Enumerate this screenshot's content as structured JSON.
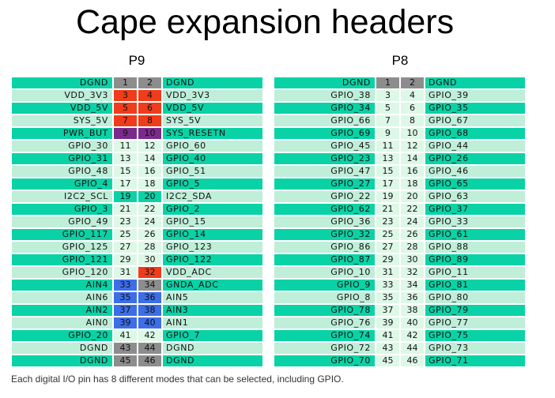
{
  "title": "Cape expansion headers",
  "footnote": "Each digital I/O pin has 8 different modes that can be selected, including GPIO.",
  "colors": {
    "teal": "#09d3a6",
    "light": "#bfeed9",
    "pale": "#ddf8e6",
    "red": "#f03c1a",
    "purple": "#7a2a8c",
    "blue": "#3c6ee8",
    "gray": "#8d8d8d"
  },
  "headers": [
    {
      "name": "P9",
      "rows": [
        {
          "left": "DGND",
          "pin_a": "1",
          "pin_b": "2",
          "right": "DGND",
          "label_color": "teal",
          "pin_color": "gray"
        },
        {
          "left": "VDD_3V3",
          "pin_a": "3",
          "pin_b": "4",
          "right": "VDD_3V3",
          "label_color": "light",
          "pin_color": "red"
        },
        {
          "left": "VDD_5V",
          "pin_a": "5",
          "pin_b": "6",
          "right": "VDD_5V",
          "label_color": "teal",
          "pin_color": "red"
        },
        {
          "left": "SYS_5V",
          "pin_a": "7",
          "pin_b": "8",
          "right": "SYS_5V",
          "label_color": "light",
          "pin_color": "red"
        },
        {
          "left": "PWR_BUT",
          "pin_a": "9",
          "pin_b": "10",
          "right": "SYS_RESETN",
          "label_color": "teal",
          "pin_color": "purple"
        },
        {
          "left": "GPIO_30",
          "pin_a": "11",
          "pin_b": "12",
          "right": "GPIO_60",
          "label_color": "light",
          "pin_color": "pale"
        },
        {
          "left": "GPIO_31",
          "pin_a": "13",
          "pin_b": "14",
          "right": "GPIO_40",
          "label_color": "teal",
          "pin_color": "pale"
        },
        {
          "left": "GPIO_48",
          "pin_a": "15",
          "pin_b": "16",
          "right": "GPIO_51",
          "label_color": "light",
          "pin_color": "pale"
        },
        {
          "left": "GPIO_4",
          "pin_a": "17",
          "pin_b": "18",
          "right": "GPIO_5",
          "label_color": "teal",
          "pin_color": "pale"
        },
        {
          "left": "I2C2_SCL",
          "pin_a": "19",
          "pin_b": "20",
          "right": "I2C2_SDA",
          "label_color": "light",
          "pin_color": "teal"
        },
        {
          "left": "GPIO_3",
          "pin_a": "21",
          "pin_b": "22",
          "right": "GPIO_2",
          "label_color": "teal",
          "pin_color": "pale"
        },
        {
          "left": "GPIO_49",
          "pin_a": "23",
          "pin_b": "24",
          "right": "GPIO_15",
          "label_color": "light",
          "pin_color": "pale"
        },
        {
          "left": "GPIO_117",
          "pin_a": "25",
          "pin_b": "26",
          "right": "GPIO_14",
          "label_color": "teal",
          "pin_color": "pale"
        },
        {
          "left": "GPIO_125",
          "pin_a": "27",
          "pin_b": "28",
          "right": "GPIO_123",
          "label_color": "light",
          "pin_color": "pale"
        },
        {
          "left": "GPIO_121",
          "pin_a": "29",
          "pin_b": "30",
          "right": "GPIO_122",
          "label_color": "teal",
          "pin_color": "pale"
        },
        {
          "left": "GPIO_120",
          "pin_a": "31",
          "pin_b": "32",
          "right": "VDD_ADC",
          "label_color": "light",
          "pin_color": "pale",
          "pin_b_color": "red"
        },
        {
          "left": "AIN4",
          "pin_a": "33",
          "pin_b": "34",
          "right": "GNDA_ADC",
          "label_color": "teal",
          "pin_color": "blue",
          "pin_b_color": "gray"
        },
        {
          "left": "AIN6",
          "pin_a": "35",
          "pin_b": "36",
          "right": "AIN5",
          "label_color": "light",
          "pin_color": "blue"
        },
        {
          "left": "AIN2",
          "pin_a": "37",
          "pin_b": "38",
          "right": "AIN3",
          "label_color": "teal",
          "pin_color": "blue"
        },
        {
          "left": "AIN0",
          "pin_a": "39",
          "pin_b": "40",
          "right": "AIN1",
          "label_color": "light",
          "pin_color": "blue"
        },
        {
          "left": "GPIO_20",
          "pin_a": "41",
          "pin_b": "42",
          "right": "GPIO_7",
          "label_color": "teal",
          "pin_color": "pale"
        },
        {
          "left": "DGND",
          "pin_a": "43",
          "pin_b": "44",
          "right": "DGND",
          "label_color": "light",
          "pin_color": "gray"
        },
        {
          "left": "DGND",
          "pin_a": "45",
          "pin_b": "46",
          "right": "DGND",
          "label_color": "teal",
          "pin_color": "gray"
        }
      ]
    },
    {
      "name": "P8",
      "rows": [
        {
          "left": "DGND",
          "pin_a": "1",
          "pin_b": "2",
          "right": "DGND",
          "label_color": "teal",
          "pin_color": "gray"
        },
        {
          "left": "GPIO_38",
          "pin_a": "3",
          "pin_b": "4",
          "right": "GPIO_39",
          "label_color": "light",
          "pin_color": "pale"
        },
        {
          "left": "GPIO_34",
          "pin_a": "5",
          "pin_b": "6",
          "right": "GPIO_35",
          "label_color": "teal",
          "pin_color": "pale"
        },
        {
          "left": "GPIO_66",
          "pin_a": "7",
          "pin_b": "8",
          "right": "GPIO_67",
          "label_color": "light",
          "pin_color": "pale"
        },
        {
          "left": "GPIO_69",
          "pin_a": "9",
          "pin_b": "10",
          "right": "GPIO_68",
          "label_color": "teal",
          "pin_color": "pale"
        },
        {
          "left": "GPIO_45",
          "pin_a": "11",
          "pin_b": "12",
          "right": "GPIO_44",
          "label_color": "light",
          "pin_color": "pale"
        },
        {
          "left": "GPIO_23",
          "pin_a": "13",
          "pin_b": "14",
          "right": "GPIO_26",
          "label_color": "teal",
          "pin_color": "pale"
        },
        {
          "left": "GPIO_47",
          "pin_a": "15",
          "pin_b": "16",
          "right": "GPIO_46",
          "label_color": "light",
          "pin_color": "pale"
        },
        {
          "left": "GPIO_27",
          "pin_a": "17",
          "pin_b": "18",
          "right": "GPIO_65",
          "label_color": "teal",
          "pin_color": "pale"
        },
        {
          "left": "GPIO_22",
          "pin_a": "19",
          "pin_b": "20",
          "right": "GPIO_63",
          "label_color": "light",
          "pin_color": "pale"
        },
        {
          "left": "GPIO_62",
          "pin_a": "21",
          "pin_b": "22",
          "right": "GPIO_37",
          "label_color": "teal",
          "pin_color": "pale"
        },
        {
          "left": "GPIO_36",
          "pin_a": "23",
          "pin_b": "24",
          "right": "GPIO_33",
          "label_color": "light",
          "pin_color": "pale"
        },
        {
          "left": "GPIO_32",
          "pin_a": "25",
          "pin_b": "26",
          "right": "GPIO_61",
          "label_color": "teal",
          "pin_color": "pale"
        },
        {
          "left": "GPIO_86",
          "pin_a": "27",
          "pin_b": "28",
          "right": "GPIO_88",
          "label_color": "light",
          "pin_color": "pale"
        },
        {
          "left": "GPIO_87",
          "pin_a": "29",
          "pin_b": "30",
          "right": "GPIO_89",
          "label_color": "teal",
          "pin_color": "pale"
        },
        {
          "left": "GPIO_10",
          "pin_a": "31",
          "pin_b": "32",
          "right": "GPIO_11",
          "label_color": "light",
          "pin_color": "pale"
        },
        {
          "left": "GPIO_9",
          "pin_a": "33",
          "pin_b": "34",
          "right": "GPIO_81",
          "label_color": "teal",
          "pin_color": "pale"
        },
        {
          "left": "GPIO_8",
          "pin_a": "35",
          "pin_b": "36",
          "right": "GPIO_80",
          "label_color": "light",
          "pin_color": "pale"
        },
        {
          "left": "GPIO_78",
          "pin_a": "37",
          "pin_b": "38",
          "right": "GPIO_79",
          "label_color": "teal",
          "pin_color": "pale"
        },
        {
          "left": "GPIO_76",
          "pin_a": "39",
          "pin_b": "40",
          "right": "GPIO_77",
          "label_color": "light",
          "pin_color": "pale"
        },
        {
          "left": "GPIO_74",
          "pin_a": "41",
          "pin_b": "42",
          "right": "GPIO_75",
          "label_color": "teal",
          "pin_color": "pale"
        },
        {
          "left": "GPIO_72",
          "pin_a": "43",
          "pin_b": "44",
          "right": "GPIO_73",
          "label_color": "light",
          "pin_color": "pale"
        },
        {
          "left": "GPIO_70",
          "pin_a": "45",
          "pin_b": "46",
          "right": "GPIO_71",
          "label_color": "teal",
          "pin_color": "pale"
        }
      ]
    }
  ]
}
